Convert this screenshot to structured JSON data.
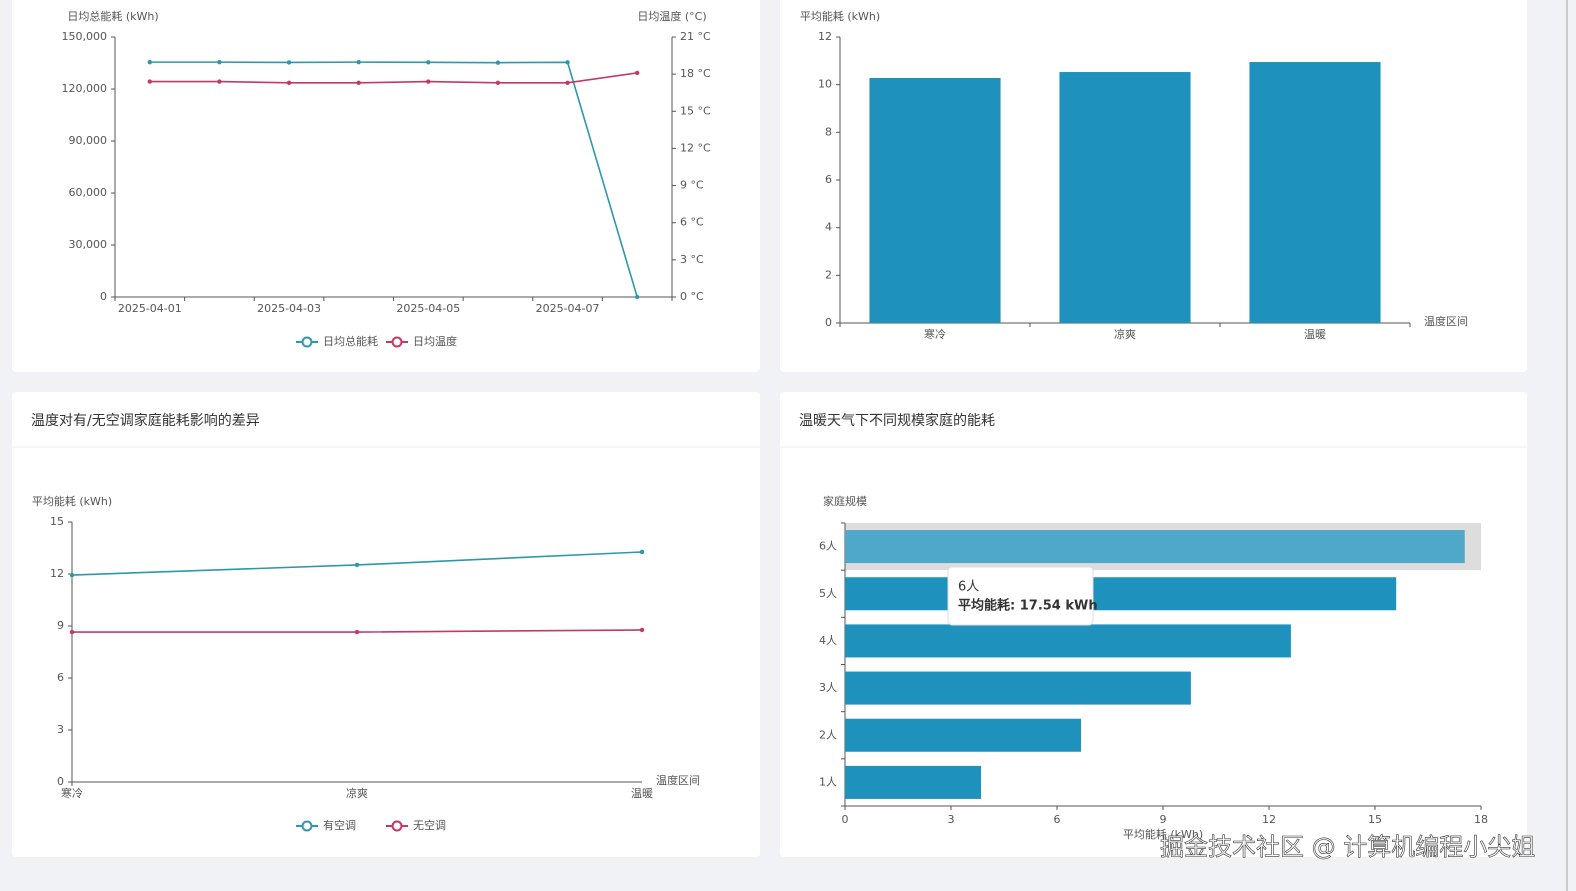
{
  "chart_data": [
    {
      "type": "line",
      "categories": [
        "2025-04-01",
        null,
        "2025-04-03",
        null,
        "2025-04-05",
        null,
        "2025-04-07",
        null
      ],
      "y_axis_label": "日均总能耗 (kWh)",
      "y2_axis_label": "日均温度 (°C)",
      "ylim": [
        0,
        150000
      ],
      "yticks": [
        0,
        {
          "value": 30000,
          "label": "30,000"
        },
        {
          "value": 60000,
          "label": "60,000"
        },
        {
          "value": 90000,
          "label": "90,000"
        },
        {
          "value": 120000,
          "label": "120,000"
        },
        {
          "value": 150000,
          "label": "150,000"
        }
      ],
      "y2lim": [
        0,
        21
      ],
      "y2ticks": [
        {
          "value": 0,
          "label": "0 °C"
        },
        {
          "value": 3,
          "label": "3 °C"
        },
        {
          "value": 6,
          "label": "6 °C"
        },
        {
          "value": 9,
          "label": "9 °C"
        },
        {
          "value": 12,
          "label": "12 °C"
        },
        {
          "value": 15,
          "label": "15 °C"
        },
        {
          "value": 18,
          "label": "18 °C"
        },
        {
          "value": 21,
          "label": "21 °C"
        }
      ],
      "grid": false,
      "legend": "bottom",
      "series": [
        {
          "name": "日均总能耗",
          "color": "#2f97ab",
          "values": [
            135500,
            135500,
            135300,
            135500,
            135400,
            135200,
            135400,
            0
          ]
        },
        {
          "name": "日均温度",
          "color": "#c23a63",
          "axis": "y2",
          "values": [
            17.4,
            17.4,
            17.3,
            17.3,
            17.4,
            17.3,
            17.3,
            18.1
          ]
        }
      ]
    },
    {
      "type": "bar",
      "categories": [
        "寒冷",
        "凉爽",
        "温暖"
      ],
      "y_axis_label": "平均能耗 (kWh)",
      "x_axis_label": "温度区间",
      "ylim": [
        0,
        12
      ],
      "yticks": [
        0,
        2,
        4,
        6,
        8,
        10,
        12
      ],
      "grid": false,
      "color": "#1e91bd",
      "values": [
        10.28,
        10.53,
        10.95
      ]
    },
    {
      "type": "line",
      "title": "温度对有/无空调家庭能耗影响的差异",
      "categories": [
        "寒冷",
        "凉爽",
        "温暖"
      ],
      "y_axis_label": "平均能耗 (kWh)",
      "x_axis_label": "温度区间",
      "ylim": [
        0,
        15
      ],
      "yticks": [
        0,
        3,
        6,
        9,
        12,
        15
      ],
      "grid": false,
      "legend": "bottom",
      "series": [
        {
          "name": "有空调",
          "color": "#2f97ab",
          "values": [
            11.94,
            12.52,
            13.27
          ]
        },
        {
          "name": "无空调",
          "color": "#c23a63",
          "values": [
            8.65,
            8.65,
            8.77
          ]
        }
      ]
    },
    {
      "type": "bar",
      "horizontal": true,
      "title": "温暖天气下不同规模家庭的能耗",
      "categories": [
        "1人",
        "2人",
        "3人",
        "4人",
        "5人",
        "6人"
      ],
      "y_axis_label": "家庭规模",
      "x_axis_label": "平均能耗 (kWh)",
      "xlim": [
        0,
        18
      ],
      "xticks": [
        0,
        3,
        6,
        9,
        12,
        15,
        18
      ],
      "grid": false,
      "color": "#1e91bd",
      "values": [
        3.85,
        6.68,
        9.79,
        12.62,
        15.6,
        17.54
      ],
      "tooltip": {
        "title": "6人",
        "label": "平均能耗: 17.54 kWh"
      }
    }
  ],
  "watermark": "掘金技术社区 @ 计算机编程小尖姐"
}
